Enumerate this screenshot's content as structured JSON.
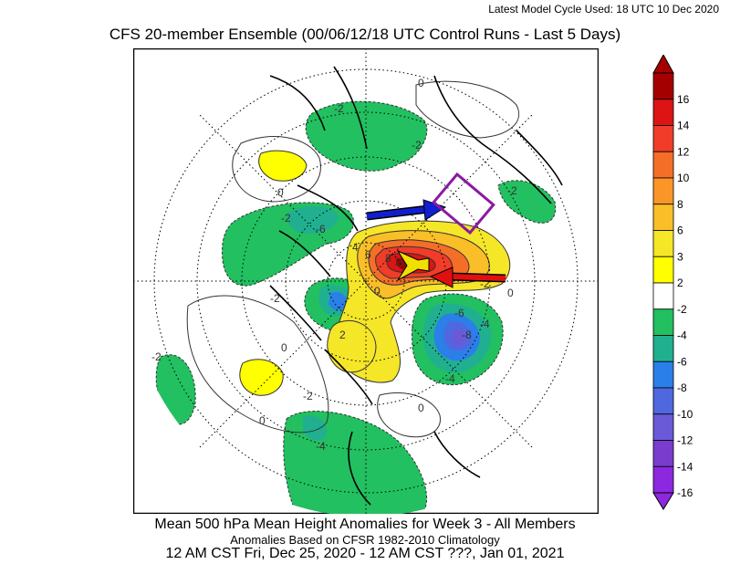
{
  "header": {
    "model_cycle": "Latest Model Cycle Used: 18 UTC 10 Dec 2020",
    "title": "CFS 20-member Ensemble (00/06/12/18 UTC Control Runs - Last 5 Days)"
  },
  "footer": {
    "line1": "Mean 500 hPa Mean Height Anomalies for Week 3 - All Members",
    "line2": "Anomalies Based on CFSR 1982-2010 Climatology",
    "line3": "12 AM CST Fri, Dec 25, 2020 - 12 AM CST ???, Jan 01, 2021"
  },
  "colorbar": {
    "levels": [
      "16",
      "14",
      "12",
      "10",
      "8",
      "6",
      "3",
      "2",
      "-2",
      "-4",
      "-6",
      "-8",
      "-10",
      "-12",
      "-14",
      "-16"
    ],
    "colors": [
      "#a50000",
      "#dc1414",
      "#f03c28",
      "#f56e28",
      "#fa9628",
      "#fabe28",
      "#f5e628",
      "#ffff00",
      "#ffffff",
      "#22c060",
      "#20b090",
      "#2a80e8",
      "#4f68e0",
      "#6a5ad8",
      "#7a3ccc",
      "#8c28e0"
    ]
  },
  "contour_labels": [
    "-2",
    "-2",
    "-2",
    "-2",
    "-2",
    "-2",
    "-2",
    "-2",
    "0",
    "0",
    "0",
    "0",
    "0",
    "0",
    "0",
    "-6",
    "2",
    "-4",
    "-4",
    "-4",
    "-8",
    "4",
    "6",
    "-6",
    "8",
    "10",
    "12",
    "14"
  ],
  "colors": {
    "blue_arrow": "#1020d0",
    "red_arrow": "#e01010",
    "yellow_arrow": "#f0e000",
    "box": "#8c1aa0"
  }
}
